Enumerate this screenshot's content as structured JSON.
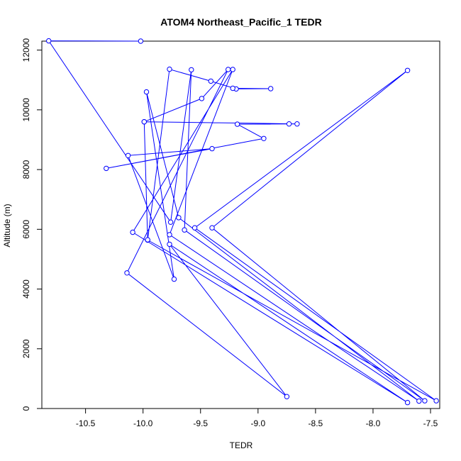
{
  "chart_data": {
    "type": "line",
    "title": "ATOM4 Northeast_Pacific_1 TEDR",
    "xlabel": "TEDR",
    "ylabel": "Altitude (m)",
    "xlim": [
      -10.88,
      -7.42
    ],
    "ylim": [
      0,
      12300
    ],
    "xticks": [
      -10.5,
      -10.0,
      -9.5,
      -9.0,
      -8.5,
      -8.0,
      -7.5
    ],
    "xtick_labels": [
      "-10.5",
      "-10.0",
      "-9.5",
      "-9.0",
      "-8.5",
      "-8.0",
      "-7.5"
    ],
    "yticks": [
      0,
      2000,
      4000,
      6000,
      8000,
      10000,
      12000
    ],
    "ytick_labels": [
      "0",
      "2000",
      "4000",
      "6000",
      "8000",
      "10000",
      "12000"
    ],
    "series_color": "#0000ff",
    "points": [
      {
        "x": -10.02,
        "y": 12300
      },
      {
        "x": -10.82,
        "y": 12310
      },
      {
        "x": -9.76,
        "y": 6240
      },
      {
        "x": -9.58,
        "y": 11340
      },
      {
        "x": -9.64,
        "y": 5980
      },
      {
        "x": -7.55,
        "y": 260
      },
      {
        "x": -9.4,
        "y": 6050
      },
      {
        "x": -7.7,
        "y": 11320
      },
      {
        "x": -9.55,
        "y": 6050
      },
      {
        "x": -7.45,
        "y": 260
      },
      {
        "x": -9.96,
        "y": 5640
      },
      {
        "x": -9.99,
        "y": 9600
      },
      {
        "x": -8.66,
        "y": 9530
      },
      {
        "x": -8.73,
        "y": 9530
      },
      {
        "x": -9.18,
        "y": 9520
      },
      {
        "x": -8.95,
        "y": 9040
      },
      {
        "x": -10.32,
        "y": 8040
      },
      {
        "x": -9.4,
        "y": 8700
      },
      {
        "x": -10.13,
        "y": 8470
      },
      {
        "x": -9.73,
        "y": 4330
      },
      {
        "x": -9.97,
        "y": 10600
      },
      {
        "x": -9.69,
        "y": 6390
      },
      {
        "x": -7.6,
        "y": 250
      },
      {
        "x": -9.77,
        "y": 5820
      },
      {
        "x": -9.22,
        "y": 11350
      },
      {
        "x": -10.09,
        "y": 5900
      },
      {
        "x": -7.7,
        "y": 200
      },
      {
        "x": -9.77,
        "y": 5500
      },
      {
        "x": -8.75,
        "y": 400
      },
      {
        "x": -10.14,
        "y": 4540
      },
      {
        "x": -9.26,
        "y": 11350
      },
      {
        "x": -9.49,
        "y": 10380
      },
      {
        "x": -9.99,
        "y": 9600
      },
      {
        "x": -9.96,
        "y": 5650
      },
      {
        "x": -9.77,
        "y": 11360
      },
      {
        "x": -9.41,
        "y": 10960
      },
      {
        "x": -9.19,
        "y": 10700
      },
      {
        "x": -8.89,
        "y": 10710
      },
      {
        "x": -9.22,
        "y": 10720
      }
    ]
  }
}
